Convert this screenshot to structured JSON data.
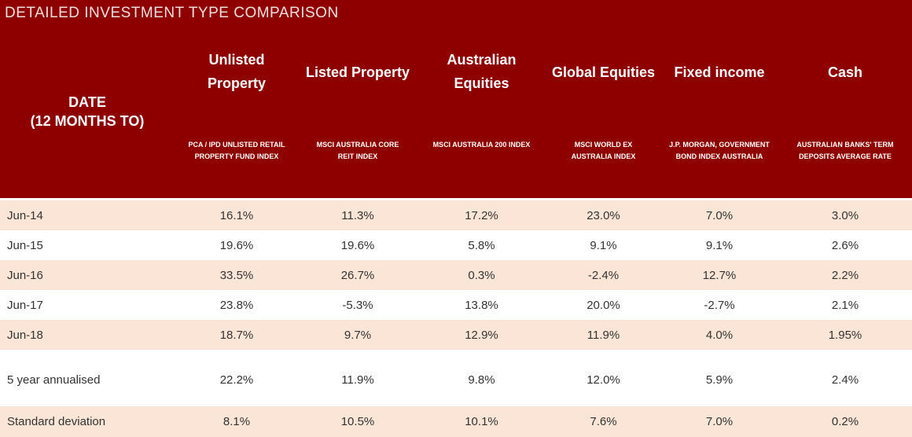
{
  "title": "DETAILED INVESTMENT TYPE COMPARISON",
  "date_header": [
    "DATE",
    "(12 MONTHS TO)"
  ],
  "colors": {
    "header_bg": "#8e0000",
    "row_shade": "#fbe5d6"
  },
  "columns": [
    {
      "name": "Unlisted Property",
      "sub": "PCA / IPD UNLISTED RETAIL PROPERTY FUND INDEX"
    },
    {
      "name": "Listed Property",
      "sub": "MSCI AUSTRALIA CORE REIT INDEX"
    },
    {
      "name": "Australian Equities",
      "sub": "MSCI AUSTRALIA 200 INDEX"
    },
    {
      "name": "Global Equities",
      "sub": "MSCI WORLD ex AUSTRALIA INDEX"
    },
    {
      "name": "Fixed income",
      "sub": "J.P. MORGAN, GOVERNMENT BOND INDEX AUSTRALIA"
    },
    {
      "name": "Cash",
      "sub": "AUSTRALIAN BANKS' TERM DEPOSITS AVERAGE RATE"
    }
  ],
  "rows": [
    {
      "label": "Jun-14",
      "values": [
        "16.1%",
        "11.3%",
        "17.2%",
        "23.0%",
        "7.0%",
        "3.0%"
      ]
    },
    {
      "label": "Jun-15",
      "values": [
        "19.6%",
        "19.6%",
        "5.8%",
        "9.1%",
        "9.1%",
        "2.6%"
      ]
    },
    {
      "label": "Jun-16",
      "values": [
        "33.5%",
        "26.7%",
        "0.3%",
        "-2.4%",
        "12.7%",
        "2.2%"
      ]
    },
    {
      "label": "Jun-17",
      "values": [
        "23.8%",
        "-5.3%",
        "13.8%",
        "20.0%",
        "-2.7%",
        "2.1%"
      ]
    },
    {
      "label": "Jun-18",
      "values": [
        "18.7%",
        "9.7%",
        "12.9%",
        "11.9%",
        "4.0%",
        "1.95%"
      ]
    },
    {
      "label": "5 year annualised",
      "values": [
        "22.2%",
        "11.9%",
        "9.8%",
        "12.0%",
        "5.9%",
        "2.4%"
      ]
    },
    {
      "label": "Standard deviation",
      "values": [
        "8.1%",
        "10.5%",
        "10.1%",
        "7.6%",
        "7.0%",
        "0.2%"
      ]
    }
  ]
}
